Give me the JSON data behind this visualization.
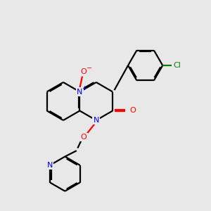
{
  "bg_color": "#e8e8e8",
  "bond_color": "#000000",
  "N_color": "#0000ff",
  "O_color": "#ff0000",
  "Cl_color": "#008000",
  "lw": 1.6,
  "dbo": 0.055,
  "xlim": [
    0,
    10
  ],
  "ylim": [
    0,
    10
  ]
}
